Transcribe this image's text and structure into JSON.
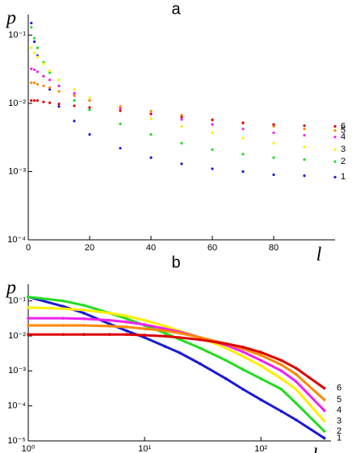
{
  "chart_data": [
    {
      "type": "scatter",
      "title": "a",
      "ylabel": "p",
      "xlabel": "l",
      "log_y": true,
      "log_x": false,
      "style": "markers",
      "xlim": [
        0,
        100
      ],
      "ylim": [
        0.0001,
        0.2
      ],
      "xticks": [
        0,
        20,
        40,
        60,
        80
      ],
      "yticks": [
        {
          "value": 0.0001,
          "label": "10⁻⁴"
        },
        {
          "value": 0.001,
          "label": "10⁻³"
        },
        {
          "value": 0.01,
          "label": "10⁻²"
        },
        {
          "value": 0.1,
          "label": "10⁻¹"
        }
      ],
      "x": [
        1,
        2,
        3,
        5,
        7,
        10,
        15,
        20,
        30,
        40,
        50,
        60,
        70,
        80,
        90,
        100
      ],
      "series": [
        {
          "name": "1",
          "color": "#1a1ad6",
          "values": [
            0.15,
            0.08,
            0.05,
            0.025,
            0.016,
            0.009,
            0.0055,
            0.0035,
            0.0022,
            0.0016,
            0.0013,
            0.0011,
            0.001,
            0.0009,
            0.00087,
            0.00083
          ]
        },
        {
          "name": "2",
          "color": "#22dd22",
          "values": [
            0.13,
            0.09,
            0.065,
            0.04,
            0.028,
            0.018,
            0.011,
            0.008,
            0.005,
            0.0035,
            0.0026,
            0.0021,
            0.0018,
            0.0016,
            0.0015,
            0.0014
          ]
        },
        {
          "name": "3",
          "color": "#ffee00",
          "values": [
            0.065,
            0.055,
            0.048,
            0.038,
            0.03,
            0.022,
            0.016,
            0.012,
            0.008,
            0.0059,
            0.0046,
            0.0037,
            0.0031,
            0.0026,
            0.0023,
            0.0021
          ]
        },
        {
          "name": "4",
          "color": "#ee22ee",
          "values": [
            0.032,
            0.031,
            0.029,
            0.025,
            0.022,
            0.018,
            0.014,
            0.011,
            0.0085,
            0.007,
            0.0058,
            0.0049,
            0.0042,
            0.0037,
            0.0034,
            0.0032
          ]
        },
        {
          "name": "5",
          "color": "#ff8800",
          "values": [
            0.02,
            0.02,
            0.019,
            0.018,
            0.017,
            0.015,
            0.013,
            0.011,
            0.009,
            0.0077,
            0.0067,
            0.0058,
            0.0051,
            0.0046,
            0.0042,
            0.004
          ]
        },
        {
          "name": "6",
          "color": "#dd0000",
          "values": [
            0.011,
            0.011,
            0.011,
            0.0105,
            0.0102,
            0.0098,
            0.0092,
            0.0087,
            0.0078,
            0.007,
            0.0063,
            0.0057,
            0.0052,
            0.0049,
            0.0047,
            0.0046
          ]
        }
      ]
    },
    {
      "type": "line",
      "title": "b",
      "ylabel": "p",
      "xlabel": "l",
      "log_y": true,
      "log_x": true,
      "style": "lines",
      "xlim": [
        1,
        400
      ],
      "ylim": [
        1e-05,
        0.3
      ],
      "xticks": [
        {
          "value": 1,
          "label": "10⁰"
        },
        {
          "value": 10,
          "label": "10¹"
        },
        {
          "value": 100,
          "label": "10²"
        }
      ],
      "yticks": [
        {
          "value": 1e-05,
          "label": "10⁻⁵"
        },
        {
          "value": 0.0001,
          "label": "10⁻⁴"
        },
        {
          "value": 0.001,
          "label": "10⁻³"
        },
        {
          "value": 0.01,
          "label": "10⁻²"
        },
        {
          "value": 0.1,
          "label": "10⁻¹"
        }
      ],
      "x": [
        1,
        2,
        3,
        5,
        7,
        10,
        15,
        20,
        30,
        50,
        70,
        100,
        150,
        200,
        350
      ],
      "series": [
        {
          "name": "1",
          "color": "#1a1ad6",
          "values": [
            0.13,
            0.07,
            0.045,
            0.022,
            0.014,
            0.009,
            0.005,
            0.0033,
            0.0016,
            0.0006,
            0.0003,
            0.00015,
            7e-05,
            4e-05,
            1.2e-05
          ]
        },
        {
          "name": "2",
          "color": "#22dd22",
          "values": [
            0.13,
            0.1,
            0.075,
            0.045,
            0.031,
            0.02,
            0.012,
            0.008,
            0.0045,
            0.002,
            0.0011,
            0.0006,
            0.0003,
            0.00012,
            1.9e-05
          ]
        },
        {
          "name": "3",
          "color": "#ffee00",
          "values": [
            0.065,
            0.06,
            0.055,
            0.045,
            0.037,
            0.028,
            0.019,
            0.014,
            0.009,
            0.0045,
            0.0026,
            0.0014,
            0.0006,
            0.0003,
            3.7e-05
          ]
        },
        {
          "name": "4",
          "color": "#ee22ee",
          "values": [
            0.032,
            0.032,
            0.031,
            0.028,
            0.025,
            0.021,
            0.016,
            0.013,
            0.009,
            0.0055,
            0.0035,
            0.002,
            0.001,
            0.0005,
            7.4e-05
          ]
        },
        {
          "name": "5",
          "color": "#ff8800",
          "values": [
            0.02,
            0.02,
            0.02,
            0.019,
            0.018,
            0.016,
            0.014,
            0.012,
            0.009,
            0.006,
            0.0043,
            0.0028,
            0.0015,
            0.0008,
            0.00015
          ]
        },
        {
          "name": "6",
          "color": "#dd0000",
          "values": [
            0.011,
            0.011,
            0.011,
            0.011,
            0.011,
            0.0105,
            0.0098,
            0.009,
            0.0078,
            0.006,
            0.0048,
            0.0034,
            0.002,
            0.0012,
            0.00032
          ]
        }
      ]
    }
  ]
}
